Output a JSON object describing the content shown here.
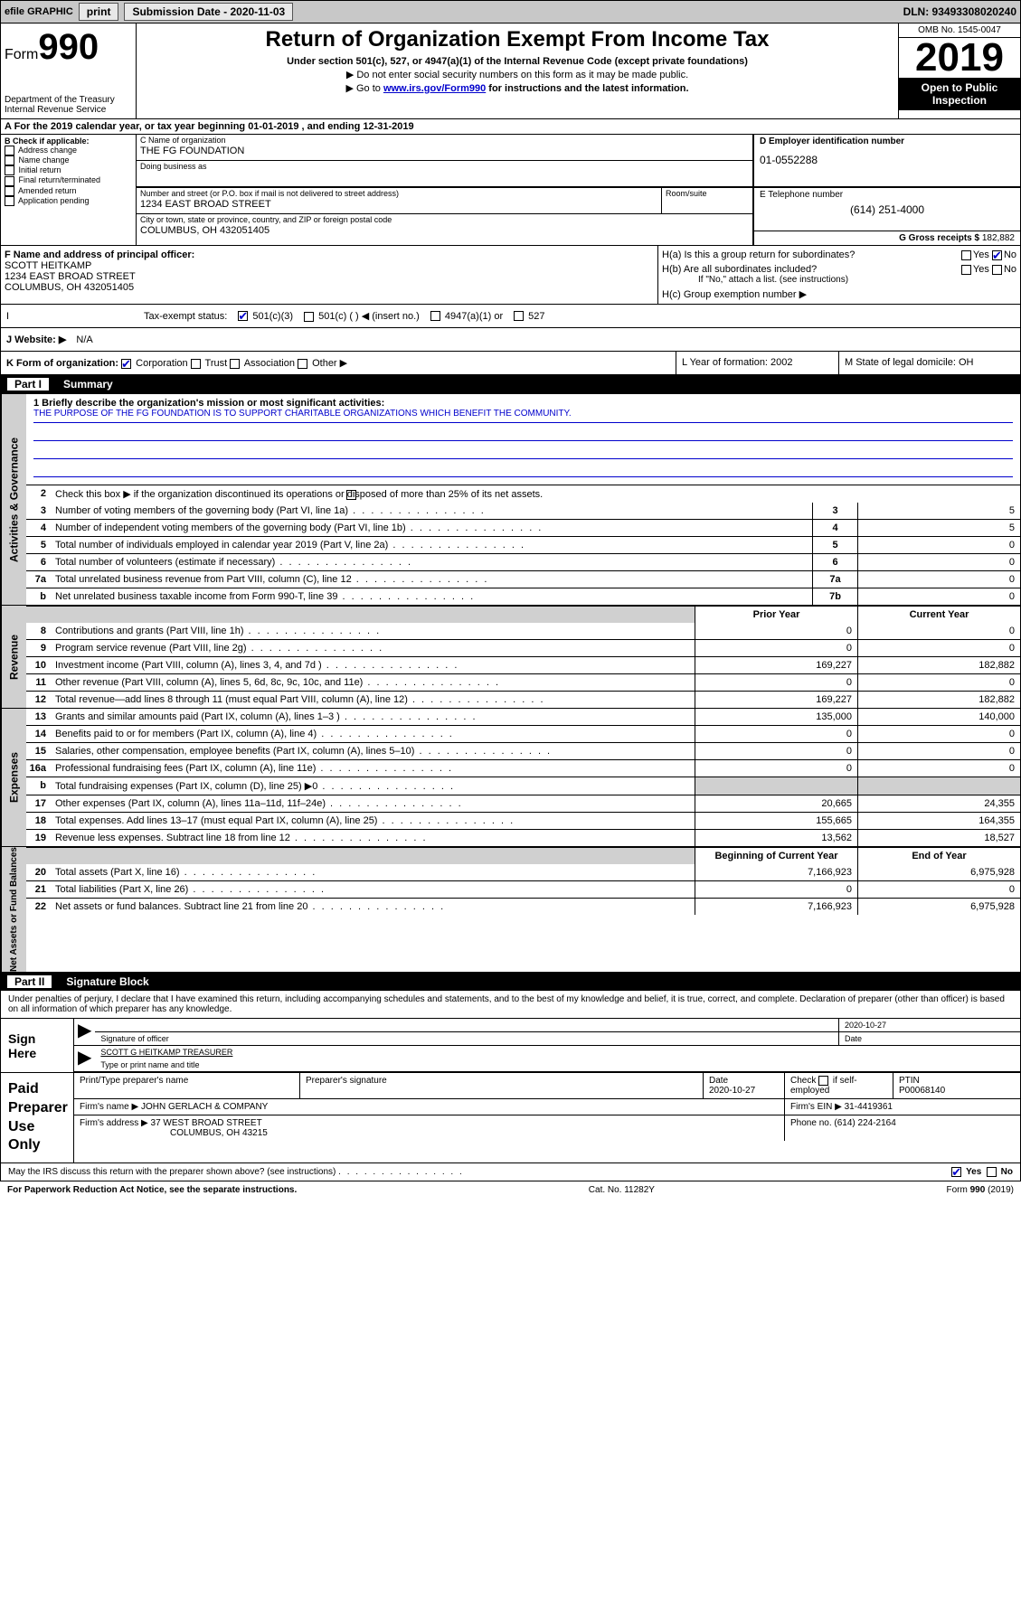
{
  "toolbar": {
    "efile": "efile GRAPHIC",
    "print": "print",
    "subdate_label": "Submission Date - 2020-11-03",
    "dln": "DLN: 93493308020240"
  },
  "header": {
    "form_label": "Form",
    "form_number": "990",
    "dept": "Department of the Treasury\nInternal Revenue Service",
    "title": "Return of Organization Exempt From Income Tax",
    "subtitle": "Under section 501(c), 527, or 4947(a)(1) of the Internal Revenue Code (except private foundations)",
    "instr1": "▶ Do not enter social security numbers on this form as it may be made public.",
    "instr2_pre": "▶ Go to ",
    "instr2_link": "www.irs.gov/Form990",
    "instr2_post": " for instructions and the latest information.",
    "omb": "OMB No. 1545-0047",
    "year": "2019",
    "open": "Open to Public Inspection"
  },
  "rowA": "A For the 2019 calendar year, or tax year beginning 01-01-2019   , and ending 12-31-2019",
  "boxB": {
    "label": "B Check if applicable:",
    "items": [
      "Address change",
      "Name change",
      "Initial return",
      "Final return/terminated",
      "Amended return",
      "Application pending"
    ]
  },
  "boxC": {
    "name_label": "C Name of organization",
    "name": "THE FG FOUNDATION",
    "dba_label": "Doing business as",
    "street_label": "Number and street (or P.O. box if mail is not delivered to street address)",
    "room_label": "Room/suite",
    "street": "1234 EAST BROAD STREET",
    "city_label": "City or town, state or province, country, and ZIP or foreign postal code",
    "city": "COLUMBUS, OH  432051405"
  },
  "boxD": {
    "ein_label": "D Employer identification number",
    "ein": "01-0552288",
    "phone_label": "E Telephone number",
    "phone": "(614) 251-4000",
    "gross_label": "G Gross receipts $",
    "gross": "182,882"
  },
  "boxF": {
    "label": "F  Name and address of principal officer:",
    "name": "SCOTT HEITKAMP",
    "addr1": "1234 EAST BROAD STREET",
    "addr2": "COLUMBUS, OH  432051405"
  },
  "boxH": {
    "ha": "H(a)  Is this a group return for subordinates?",
    "hb": "H(b)  Are all subordinates included?",
    "hb_note": "If \"No,\" attach a list. (see instructions)",
    "hc": "H(c)  Group exemption number ▶",
    "yes": "Yes",
    "no": "No"
  },
  "taxStatus": {
    "label": "Tax-exempt status:",
    "o1": "501(c)(3)",
    "o2": "501(c) (  ) ◀ (insert no.)",
    "o3": "4947(a)(1) or",
    "o4": "527"
  },
  "website": {
    "label": "J   Website: ▶",
    "value": "N/A"
  },
  "klm": {
    "k": "K Form of organization:",
    "k_opts": [
      "Corporation",
      "Trust",
      "Association",
      "Other ▶"
    ],
    "l": "L Year of formation: 2002",
    "m": "M State of legal domicile: OH"
  },
  "part1": {
    "header_part": "Part I",
    "header_title": "Summary",
    "line1_label": "1  Briefly describe the organization's mission or most significant activities:",
    "mission": "THE PURPOSE OF THE FG FOUNDATION IS TO SUPPORT CHARITABLE ORGANIZATIONS WHICH BENEFIT THE COMMUNITY.",
    "line2": "Check this box ▶       if the organization discontinued its operations or disposed of more than 25% of its net assets.",
    "prior_year": "Prior Year",
    "current_year": "Current Year",
    "begin_year": "Beginning of Current Year",
    "end_year": "End of Year",
    "vlabels": {
      "gov": "Activities & Governance",
      "rev": "Revenue",
      "exp": "Expenses",
      "net": "Net Assets or Fund Balances"
    },
    "rows_gov": [
      {
        "n": "3",
        "t": "Number of voting members of the governing body (Part VI, line 1a)",
        "b": "3",
        "v": "5"
      },
      {
        "n": "4",
        "t": "Number of independent voting members of the governing body (Part VI, line 1b)",
        "b": "4",
        "v": "5"
      },
      {
        "n": "5",
        "t": "Total number of individuals employed in calendar year 2019 (Part V, line 2a)",
        "b": "5",
        "v": "0"
      },
      {
        "n": "6",
        "t": "Total number of volunteers (estimate if necessary)",
        "b": "6",
        "v": "0"
      },
      {
        "n": "7a",
        "t": "Total unrelated business revenue from Part VIII, column (C), line 12",
        "b": "7a",
        "v": "0"
      },
      {
        "n": "b",
        "t": "Net unrelated business taxable income from Form 990-T, line 39",
        "b": "7b",
        "v": "0"
      }
    ],
    "rows_rev": [
      {
        "n": "8",
        "t": "Contributions and grants (Part VIII, line 1h)",
        "p": "0",
        "c": "0"
      },
      {
        "n": "9",
        "t": "Program service revenue (Part VIII, line 2g)",
        "p": "0",
        "c": "0"
      },
      {
        "n": "10",
        "t": "Investment income (Part VIII, column (A), lines 3, 4, and 7d )",
        "p": "169,227",
        "c": "182,882"
      },
      {
        "n": "11",
        "t": "Other revenue (Part VIII, column (A), lines 5, 6d, 8c, 9c, 10c, and 11e)",
        "p": "0",
        "c": "0"
      },
      {
        "n": "12",
        "t": "Total revenue—add lines 8 through 11 (must equal Part VIII, column (A), line 12)",
        "p": "169,227",
        "c": "182,882"
      }
    ],
    "rows_exp": [
      {
        "n": "13",
        "t": "Grants and similar amounts paid (Part IX, column (A), lines 1–3 )",
        "p": "135,000",
        "c": "140,000"
      },
      {
        "n": "14",
        "t": "Benefits paid to or for members (Part IX, column (A), line 4)",
        "p": "0",
        "c": "0"
      },
      {
        "n": "15",
        "t": "Salaries, other compensation, employee benefits (Part IX, column (A), lines 5–10)",
        "p": "0",
        "c": "0"
      },
      {
        "n": "16a",
        "t": "Professional fundraising fees (Part IX, column (A), line 11e)",
        "p": "0",
        "c": "0"
      },
      {
        "n": "b",
        "t": "Total fundraising expenses (Part IX, column (D), line 25) ▶0",
        "p": "",
        "c": "",
        "gray": true
      },
      {
        "n": "17",
        "t": "Other expenses (Part IX, column (A), lines 11a–11d, 11f–24e)",
        "p": "20,665",
        "c": "24,355"
      },
      {
        "n": "18",
        "t": "Total expenses. Add lines 13–17 (must equal Part IX, column (A), line 25)",
        "p": "155,665",
        "c": "164,355"
      },
      {
        "n": "19",
        "t": "Revenue less expenses. Subtract line 18 from line 12",
        "p": "13,562",
        "c": "18,527"
      }
    ],
    "rows_net": [
      {
        "n": "20",
        "t": "Total assets (Part X, line 16)",
        "p": "7,166,923",
        "c": "6,975,928"
      },
      {
        "n": "21",
        "t": "Total liabilities (Part X, line 26)",
        "p": "0",
        "c": "0"
      },
      {
        "n": "22",
        "t": "Net assets or fund balances. Subtract line 21 from line 20",
        "p": "7,166,923",
        "c": "6,975,928"
      }
    ]
  },
  "part2": {
    "header_part": "Part II",
    "header_title": "Signature Block",
    "declaration": "Under penalties of perjury, I declare that I have examined this return, including accompanying schedules and statements, and to the best of my knowledge and belief, it is true, correct, and complete. Declaration of preparer (other than officer) is based on all information of which preparer has any knowledge.",
    "sign_here": "Sign Here",
    "sig_officer": "Signature of officer",
    "sig_date": "2020-10-27",
    "sig_date_label": "Date",
    "officer_name": "SCOTT G HEITKAMP TREASURER",
    "type_name": "Type or print name and title",
    "paid": "Paid Preparer Use Only",
    "prep_name_label": "Print/Type preparer's name",
    "prep_sig_label": "Preparer's signature",
    "date_label": "Date",
    "date_val": "2020-10-27",
    "check_self": "Check       if self-employed",
    "ptin_label": "PTIN",
    "ptin": "P00068140",
    "firm_name_label": "Firm's name    ▶",
    "firm_name": "JOHN GERLACH & COMPANY",
    "firm_ein_label": "Firm's EIN ▶",
    "firm_ein": "31-4419361",
    "firm_addr_label": "Firm's address ▶",
    "firm_addr1": "37 WEST BROAD STREET",
    "firm_addr2": "COLUMBUS, OH  43215",
    "phone_label": "Phone no.",
    "phone": "(614) 224-2164",
    "discuss": "May the IRS discuss this return with the preparer shown above? (see instructions)",
    "paperwork": "For Paperwork Reduction Act Notice, see the separate instructions.",
    "cat": "Cat. No. 11282Y",
    "form_foot": "Form 990 (2019)"
  }
}
